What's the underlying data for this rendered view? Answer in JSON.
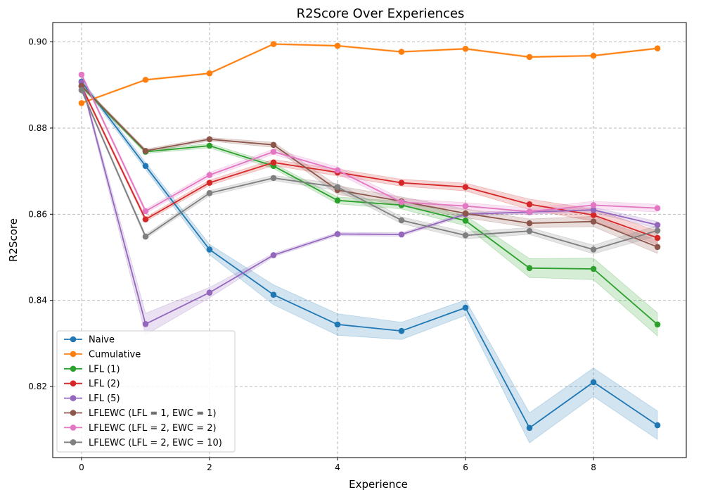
{
  "chart_data": {
    "type": "line",
    "title": "R2Score Over Experiences",
    "xlabel": "Experience",
    "ylabel": "R2Score",
    "xlim": [
      -0.45,
      9.45
    ],
    "ylim": [
      0.8035,
      0.9045
    ],
    "x_ticks": [
      0,
      2,
      4,
      6,
      8
    ],
    "y_ticks": [
      0.82,
      0.84,
      0.86,
      0.88,
      0.9
    ],
    "y_tick_labels": [
      "0.82",
      "0.84",
      "0.86",
      "0.88",
      "0.90"
    ],
    "grid": true,
    "legend_position": "lower-left",
    "shaded_band": "uncertainty band around each series",
    "x": [
      0,
      1,
      2,
      3,
      4,
      5,
      6,
      7,
      8,
      9
    ],
    "series": [
      {
        "name": "Naive",
        "color": "#1f77b4",
        "values": [
          0.8908,
          0.8712,
          0.8518,
          0.8413,
          0.8344,
          0.8329,
          0.8383,
          0.8104,
          0.821,
          0.811
        ],
        "band": [
          0.0005,
          0.0008,
          0.0012,
          0.0023,
          0.0025,
          0.002,
          0.0018,
          0.0035,
          0.0033,
          0.0033
        ]
      },
      {
        "name": "Cumulative",
        "color": "#ff7f0e",
        "values": [
          0.8858,
          0.8912,
          0.8927,
          0.8995,
          0.8991,
          0.8977,
          0.8984,
          0.8965,
          0.8968,
          0.8985
        ],
        "band": [
          0.0002,
          0.0002,
          0.0002,
          0.0002,
          0.0002,
          0.0002,
          0.0002,
          0.0002,
          0.0002,
          0.0002
        ]
      },
      {
        "name": "LFL (1)",
        "color": "#2ca02c",
        "values": [
          0.8897,
          0.8745,
          0.8759,
          0.8712,
          0.8632,
          0.8621,
          0.8585,
          0.8475,
          0.8473,
          0.8344
        ],
        "band": [
          0.0004,
          0.0004,
          0.0005,
          0.0006,
          0.0008,
          0.0009,
          0.0012,
          0.0022,
          0.0025,
          0.0027
        ]
      },
      {
        "name": "LFL (2)",
        "color": "#d62728",
        "values": [
          0.8897,
          0.8588,
          0.8673,
          0.872,
          0.8697,
          0.8673,
          0.8663,
          0.8623,
          0.8598,
          0.8545
        ],
        "band": [
          0.0004,
          0.0005,
          0.0006,
          0.0007,
          0.0008,
          0.0008,
          0.0009,
          0.0012,
          0.0014,
          0.0016
        ]
      },
      {
        "name": "LFL (5)",
        "color": "#9467bd",
        "values": [
          0.8906,
          0.8345,
          0.8418,
          0.8505,
          0.8554,
          0.8553,
          0.86,
          0.8605,
          0.861,
          0.8575
        ],
        "band": [
          0.0004,
          0.0025,
          0.0012,
          0.0004,
          0.0004,
          0.0004,
          0.0004,
          0.0004,
          0.0006,
          0.0008
        ]
      },
      {
        "name": "LFLEWC (LFL = 1, EWC = 1)",
        "color": "#8c564b",
        "values": [
          0.8898,
          0.8747,
          0.8774,
          0.8761,
          0.8656,
          0.863,
          0.8602,
          0.8579,
          0.8583,
          0.8524
        ],
        "band": [
          0.0004,
          0.0004,
          0.0004,
          0.0006,
          0.001,
          0.001,
          0.001,
          0.001,
          0.0012,
          0.0015
        ]
      },
      {
        "name": "LFLEWC (LFL = 2, EWC = 2)",
        "color": "#e377c2",
        "values": [
          0.8924,
          0.8607,
          0.8691,
          0.8745,
          0.8702,
          0.8628,
          0.8619,
          0.8606,
          0.8621,
          0.8614
        ],
        "band": [
          0.0004,
          0.0005,
          0.0006,
          0.0006,
          0.0008,
          0.0008,
          0.0008,
          0.0008,
          0.0009,
          0.0009
        ]
      },
      {
        "name": "LFLEWC (LFL = 2, EWC = 10)",
        "color": "#7f7f7f",
        "values": [
          0.8888,
          0.8548,
          0.8649,
          0.8684,
          0.8663,
          0.8586,
          0.8551,
          0.8561,
          0.8518,
          0.8562
        ],
        "band": [
          0.0004,
          0.0005,
          0.0006,
          0.0006,
          0.0008,
          0.0008,
          0.0008,
          0.0008,
          0.001,
          0.0012
        ]
      }
    ]
  }
}
